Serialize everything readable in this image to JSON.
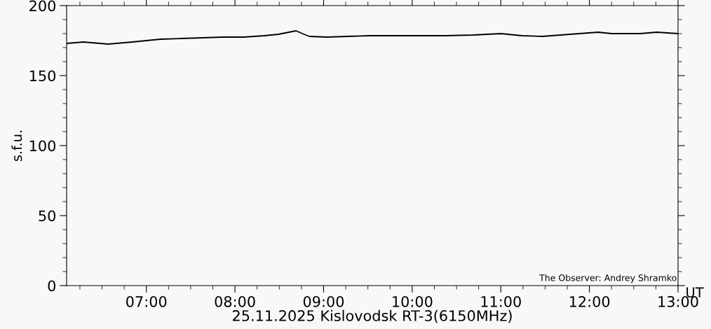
{
  "chart_data": {
    "type": "line",
    "xlabel": "25.11.2025 Kislovodsk RT-3(6150MHz)",
    "ylabel": "s.f.u.",
    "annotations": [
      "The Observer: Andrey Shramko",
      "UT"
    ],
    "x": [
      6.1,
      6.29,
      6.57,
      6.84,
      7.16,
      7.39,
      7.63,
      7.86,
      8.1,
      8.33,
      8.49,
      8.61,
      8.69,
      8.76,
      8.84,
      9.04,
      9.27,
      9.51,
      9.75,
      10.06,
      10.37,
      10.69,
      11.0,
      11.24,
      11.47,
      11.78,
      12.1,
      12.25,
      12.57,
      12.76,
      13.0
    ],
    "series": [
      {
        "color": "#000000",
        "values": [
          173,
          174,
          172.5,
          174,
          176,
          176.5,
          177,
          177.5,
          177.5,
          178.5,
          179.5,
          181,
          182,
          180,
          178,
          177.5,
          178,
          178.5,
          178.5,
          178.5,
          178.5,
          179,
          180,
          178.5,
          178,
          179.5,
          181,
          180,
          180,
          181,
          180
        ]
      }
    ],
    "xlim": [
      6.1,
      13
    ],
    "ylim": [
      0,
      200
    ],
    "xticks": [
      {
        "value": 7,
        "label": "07:00"
      },
      {
        "value": 8,
        "label": "08:00"
      },
      {
        "value": 9,
        "label": "09:00"
      },
      {
        "value": 10,
        "label": "10:00"
      },
      {
        "value": 11,
        "label": "11:00"
      },
      {
        "value": 12,
        "label": "12:00"
      },
      {
        "value": 13,
        "label": "13:00"
      }
    ],
    "yticks": [
      0,
      50,
      100,
      150,
      200
    ],
    "grid": false,
    "legend": false,
    "marker": "none",
    "line_style": "solid"
  }
}
